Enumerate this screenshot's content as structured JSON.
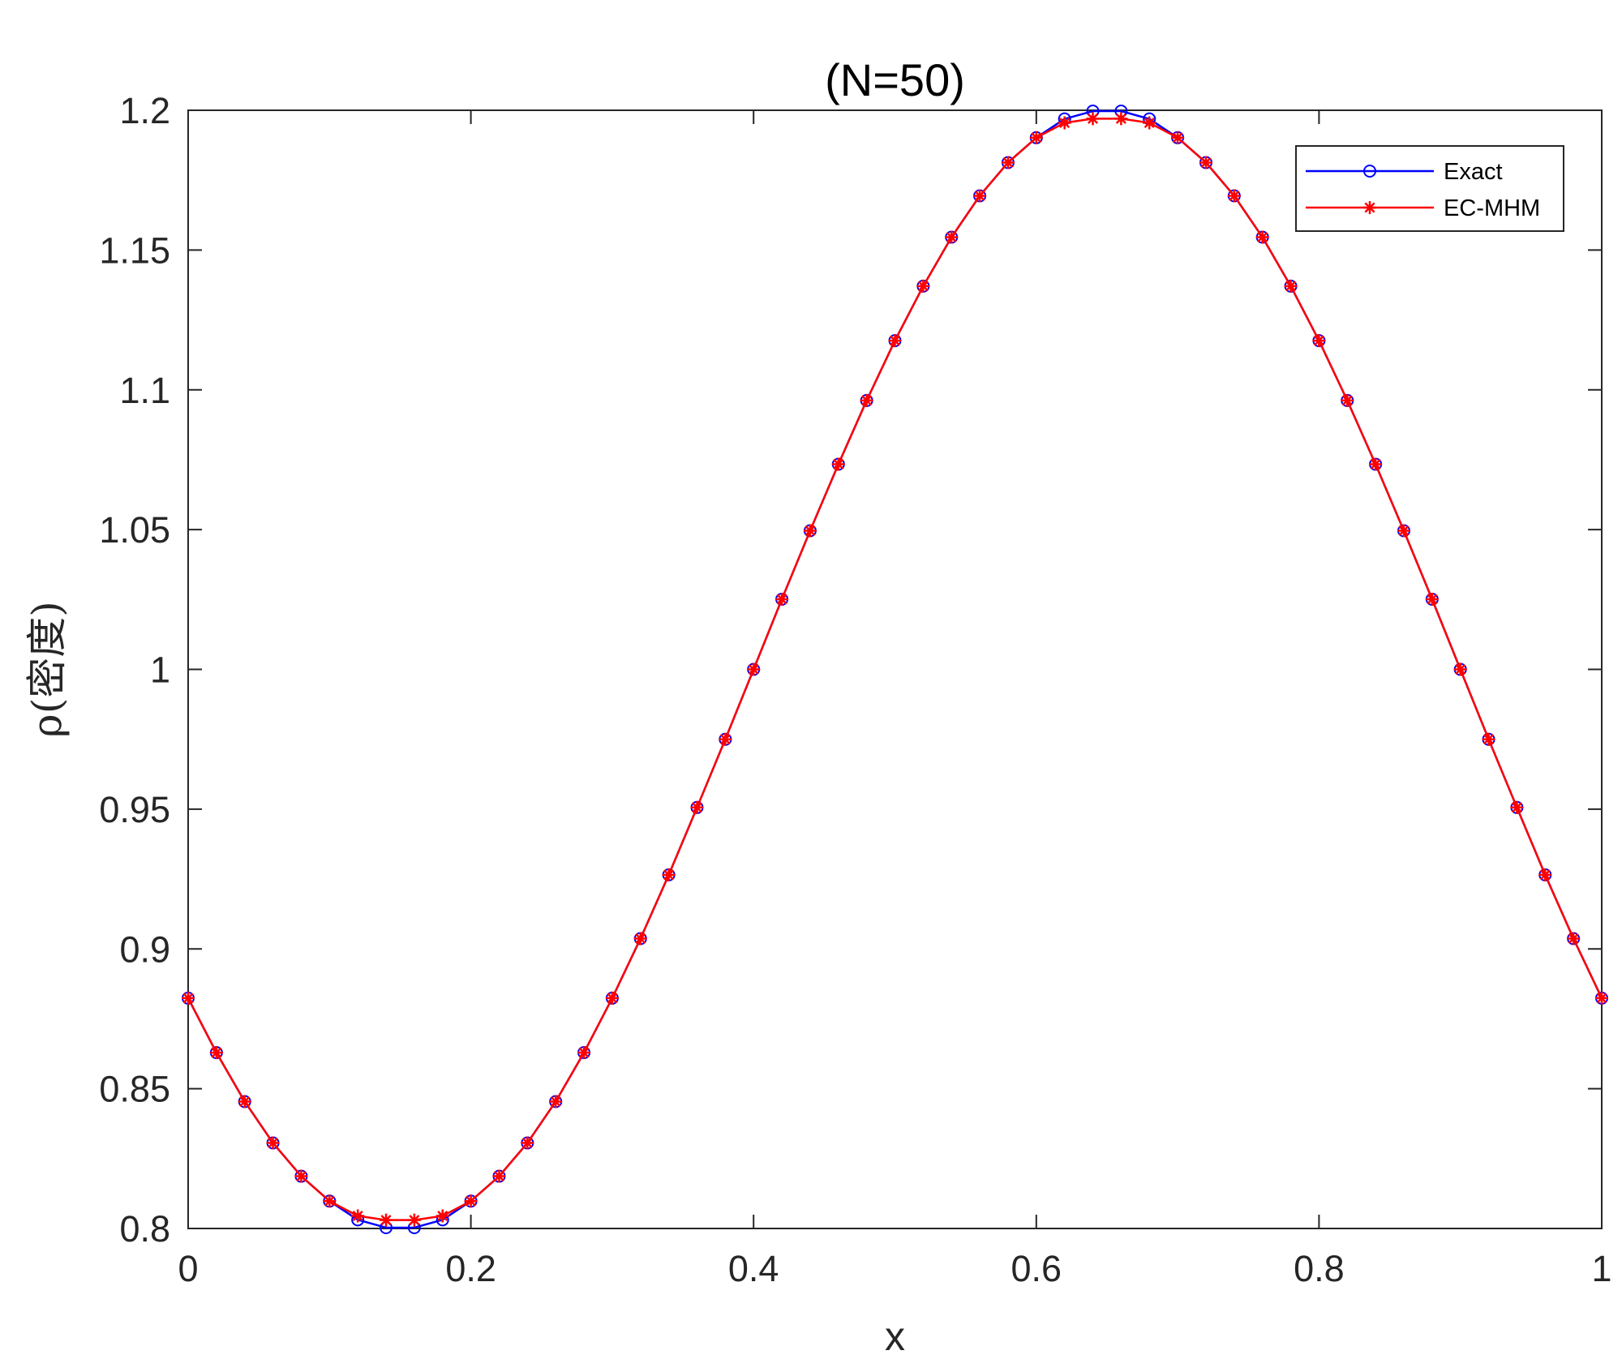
{
  "chart_data": {
    "type": "line",
    "title": "(N=50)",
    "xlabel": "x",
    "ylabel": "ρ(密度)",
    "xlim": [
      0,
      1
    ],
    "ylim": [
      0.8,
      1.2
    ],
    "xticks": [
      0,
      0.2,
      0.4,
      0.6,
      0.8,
      1
    ],
    "xtick_labels": [
      "0",
      "0.2",
      "0.4",
      "0.6",
      "0.8",
      "1"
    ],
    "yticks": [
      0.8,
      0.85,
      0.9,
      0.95,
      1,
      1.05,
      1.1,
      1.15,
      1.2
    ],
    "ytick_labels": [
      "0.8",
      "0.85",
      "0.9",
      "0.95",
      "1",
      "1.05",
      "1.1",
      "1.15",
      "1.2"
    ],
    "grid": false,
    "legend_position": "top-right",
    "x": [
      0,
      0.02,
      0.04,
      0.06,
      0.08,
      0.1,
      0.12,
      0.14,
      0.16,
      0.18,
      0.2,
      0.22,
      0.24,
      0.26,
      0.28,
      0.3,
      0.32,
      0.34,
      0.36,
      0.38,
      0.4,
      0.42,
      0.44,
      0.46,
      0.48,
      0.5,
      0.52,
      0.54,
      0.56,
      0.58,
      0.6,
      0.62,
      0.64,
      0.66,
      0.68,
      0.7,
      0.72,
      0.74,
      0.76,
      0.78,
      0.8,
      0.82,
      0.84,
      0.86,
      0.88,
      0.9,
      0.92,
      0.94,
      0.96,
      0.98,
      1
    ],
    "series": [
      {
        "name": "Exact",
        "color": "#0000ff",
        "marker": "circle",
        "values": [
          0.8824,
          0.8629,
          0.8454,
          0.8306,
          0.8187,
          0.8098,
          0.8031,
          0.8003,
          0.8003,
          0.8031,
          0.8098,
          0.8187,
          0.8306,
          0.8454,
          0.8629,
          0.8824,
          0.9037,
          0.9265,
          0.9506,
          0.975,
          1.0,
          1.0251,
          1.0496,
          1.0734,
          1.0962,
          1.1176,
          1.1371,
          1.1546,
          1.1694,
          1.1813,
          1.1902,
          1.1969,
          1.1997,
          1.1997,
          1.1969,
          1.1902,
          1.1813,
          1.1694,
          1.1546,
          1.1371,
          1.1176,
          1.0962,
          1.0734,
          1.0496,
          1.0251,
          1.0,
          0.975,
          0.9506,
          0.9265,
          0.9037,
          0.8824
        ]
      },
      {
        "name": "EC-MHM",
        "color": "#ff0000",
        "marker": "asterisk",
        "values": [
          0.8824,
          0.8629,
          0.8454,
          0.8306,
          0.8187,
          0.8098,
          0.8045,
          0.803,
          0.803,
          0.8045,
          0.8098,
          0.8187,
          0.8306,
          0.8454,
          0.8629,
          0.8824,
          0.9037,
          0.9265,
          0.9506,
          0.975,
          1.0,
          1.0251,
          1.0496,
          1.0734,
          1.0962,
          1.1176,
          1.1371,
          1.1546,
          1.1694,
          1.1813,
          1.1902,
          1.1955,
          1.197,
          1.197,
          1.1955,
          1.1902,
          1.1813,
          1.1694,
          1.1546,
          1.1371,
          1.1176,
          1.0962,
          1.0734,
          1.0496,
          1.0251,
          1.0,
          0.975,
          0.9506,
          0.9265,
          0.9037,
          0.8824
        ]
      }
    ]
  }
}
